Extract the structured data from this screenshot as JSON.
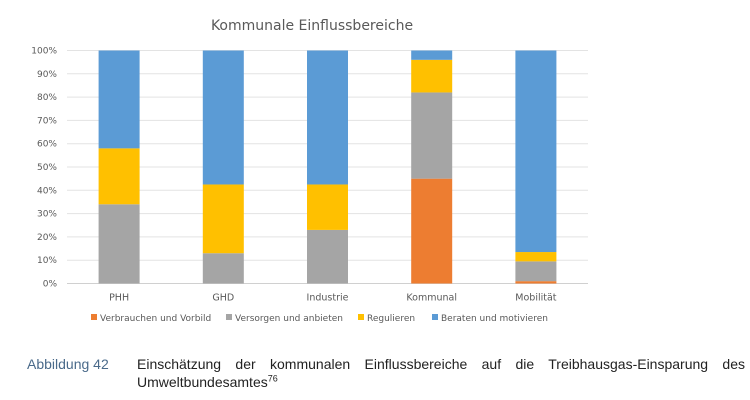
{
  "chart_data": {
    "type": "bar",
    "stacked": true,
    "percent": true,
    "title": "Kommunale Einflussbereiche",
    "xlabel": "",
    "ylabel": "",
    "ylim": [
      0,
      100
    ],
    "yticks": [
      0,
      10,
      20,
      30,
      40,
      50,
      60,
      70,
      80,
      90,
      100
    ],
    "ytick_labels": [
      "0%",
      "10%",
      "20%",
      "30%",
      "40%",
      "50%",
      "60%",
      "70%",
      "80%",
      "90%",
      "100%"
    ],
    "grid": true,
    "legend_position": "bottom",
    "categories": [
      "PHH",
      "GHD",
      "Industrie",
      "Kommunal",
      "Mobilität"
    ],
    "series": [
      {
        "name": "Verbrauchen und Vorbild",
        "color": "#ED7D31",
        "values": [
          0,
          0,
          0,
          45,
          1
        ]
      },
      {
        "name": "Versorgen und anbieten",
        "color": "#A5A5A5",
        "values": [
          34,
          13,
          23,
          37,
          8.5
        ]
      },
      {
        "name": "Regulieren",
        "color": "#FFC000",
        "values": [
          24,
          29.5,
          19.5,
          14,
          4
        ]
      },
      {
        "name": "Beraten und motivieren",
        "color": "#5B9BD5",
        "values": [
          42,
          57.5,
          57.5,
          4,
          86.5
        ]
      }
    ]
  },
  "caption": {
    "label": "Abbildung 42",
    "text": "Einschätzung der kommunalen Einflussbereiche auf die Treibhausgas-Einsparung des Umweltbundesamtes",
    "footnote": "76"
  }
}
